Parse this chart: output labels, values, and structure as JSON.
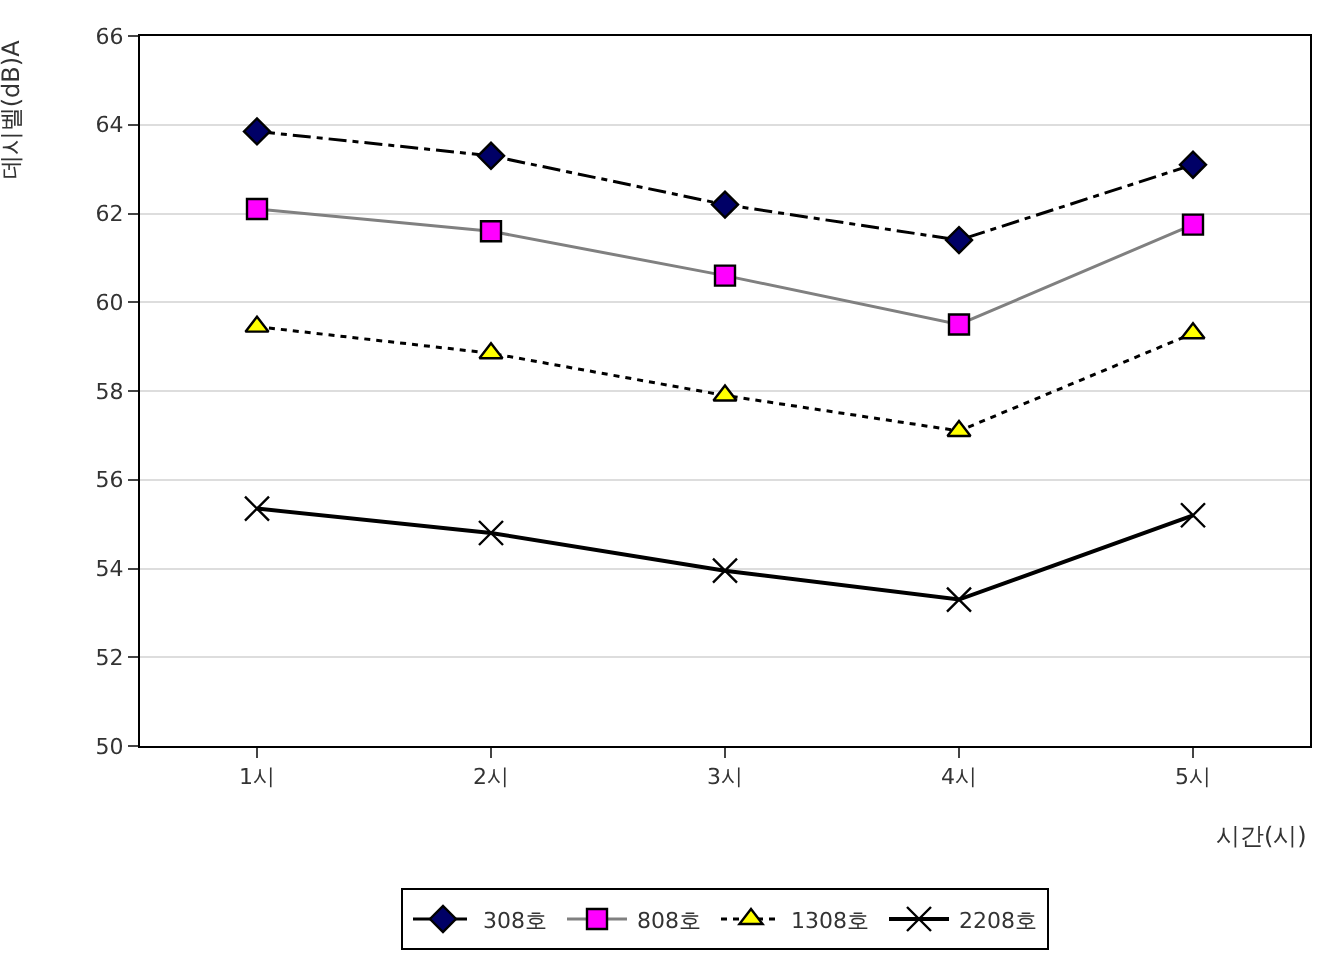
{
  "chart_data": {
    "type": "line",
    "xlabel": "시간(시)",
    "ylabel": "데시벨(dB)A",
    "categories": [
      "1시",
      "2시",
      "3시",
      "4시",
      "5시"
    ],
    "series": [
      {
        "name": "308호",
        "color": "#000066",
        "values": [
          63.85,
          63.3,
          62.2,
          61.4,
          63.1
        ],
        "marker": "diamond",
        "line_style": "dashdot"
      },
      {
        "name": "808호",
        "color": "#ff00ff",
        "values": [
          62.1,
          61.6,
          60.6,
          59.5,
          61.75
        ],
        "marker": "square",
        "line_style": "solid"
      },
      {
        "name": "1308호",
        "color": "#ffff00",
        "values": [
          59.45,
          58.85,
          57.9,
          57.1,
          59.3
        ],
        "marker": "triangle",
        "line_style": "dotted"
      },
      {
        "name": "2208호",
        "color": "#000000",
        "values": [
          55.35,
          54.8,
          53.95,
          53.3,
          55.2
        ],
        "marker": "cross",
        "line_style": "solid"
      }
    ],
    "ylim": [
      50,
      66
    ],
    "yticks": [
      50,
      52,
      54,
      56,
      58,
      60,
      62,
      64,
      66
    ],
    "grid": "y",
    "legend": "bottom"
  }
}
